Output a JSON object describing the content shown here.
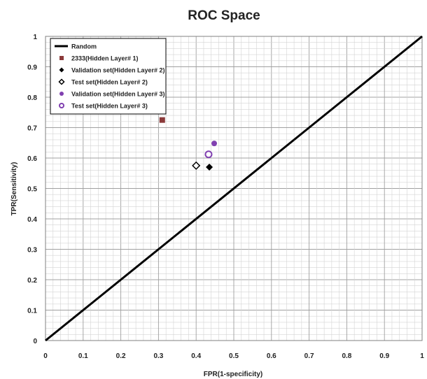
{
  "chart_data": {
    "type": "scatter",
    "title": "ROC Space",
    "xlabel": "FPR(1-specificity)",
    "ylabel": "TPR(Sensitivity)",
    "xlim": [
      0,
      1
    ],
    "ylim": [
      0,
      1
    ],
    "x_ticks": [
      "0",
      "0.1",
      "0.2",
      "0.3",
      "0.4",
      "0.5",
      "0.6",
      "0.7",
      "0.8",
      "0.9",
      "1"
    ],
    "y_ticks": [
      "0",
      "0.1",
      "0.2",
      "0.3",
      "0.4",
      "0.5",
      "0.6",
      "0.7",
      "0.8",
      "0.9",
      "1"
    ],
    "grid": "major and minor",
    "legend_position": "top-left",
    "series": [
      {
        "name": "Random",
        "kind": "line",
        "x": [
          0,
          1
        ],
        "y": [
          0,
          1
        ],
        "color": "#000000"
      },
      {
        "name": "2333(Hidden Layer# 1)",
        "kind": "point",
        "marker": "square",
        "x": [
          0.31
        ],
        "y": [
          0.725
        ],
        "color": "#8B3A3A"
      },
      {
        "name": "Validation set(Hidden Layer# 2)",
        "kind": "point",
        "marker": "diamond-filled",
        "x": [
          0.435
        ],
        "y": [
          0.57
        ],
        "color": "#000000"
      },
      {
        "name": "Test set(Hidden Layer# 2)",
        "kind": "point",
        "marker": "diamond-open",
        "x": [
          0.4
        ],
        "y": [
          0.575
        ],
        "color": "#000000"
      },
      {
        "name": "Validation set(Hidden Layer# 3)",
        "kind": "point",
        "marker": "circle-filled",
        "x": [
          0.448
        ],
        "y": [
          0.648
        ],
        "color": "#8040B0"
      },
      {
        "name": "Test set(Hidden Layer# 3)",
        "kind": "point",
        "marker": "circle-open",
        "x": [
          0.433
        ],
        "y": [
          0.612
        ],
        "color": "#8040B0"
      }
    ]
  }
}
